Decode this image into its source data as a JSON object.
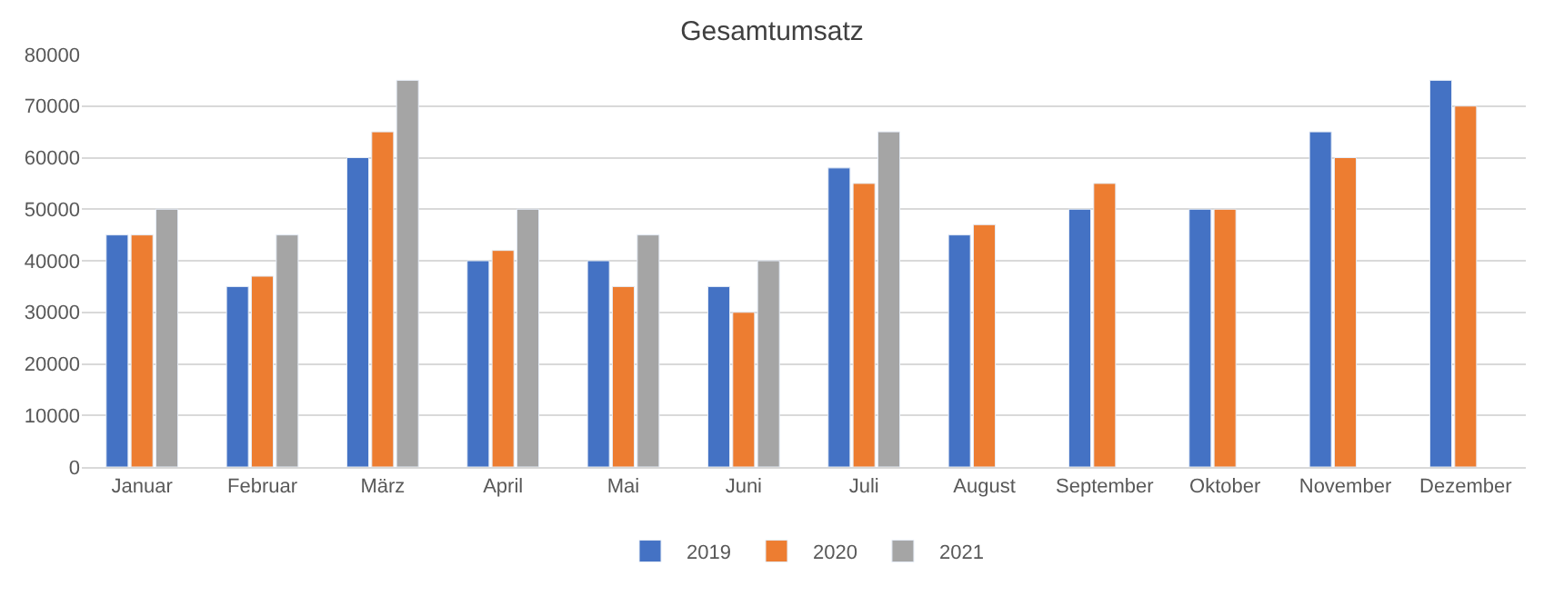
{
  "chart_data": {
    "type": "bar",
    "title": "Gesamtumsatz",
    "categories": [
      "Januar",
      "Februar",
      "März",
      "April",
      "Mai",
      "Juni",
      "Juli",
      "August",
      "September",
      "Oktober",
      "November",
      "Dezember"
    ],
    "series": [
      {
        "name": "2019",
        "color": "#4472c4",
        "values": [
          45000,
          35000,
          60000,
          40000,
          40000,
          35000,
          58000,
          45000,
          50000,
          50000,
          65000,
          75000
        ]
      },
      {
        "name": "2020",
        "color": "#ed7d31",
        "values": [
          45000,
          37000,
          65000,
          42000,
          35000,
          30000,
          55000,
          47000,
          55000,
          50000,
          60000,
          70000
        ]
      },
      {
        "name": "2021",
        "color": "#a5a5a5",
        "values": [
          50000,
          45000,
          75000,
          50000,
          45000,
          40000,
          65000,
          null,
          null,
          null,
          null,
          null
        ]
      }
    ],
    "ylim": [
      0,
      80000
    ],
    "yticks": [
      0,
      10000,
      20000,
      30000,
      40000,
      50000,
      60000,
      70000,
      80000
    ],
    "grid": "y",
    "legend": "bottom"
  }
}
